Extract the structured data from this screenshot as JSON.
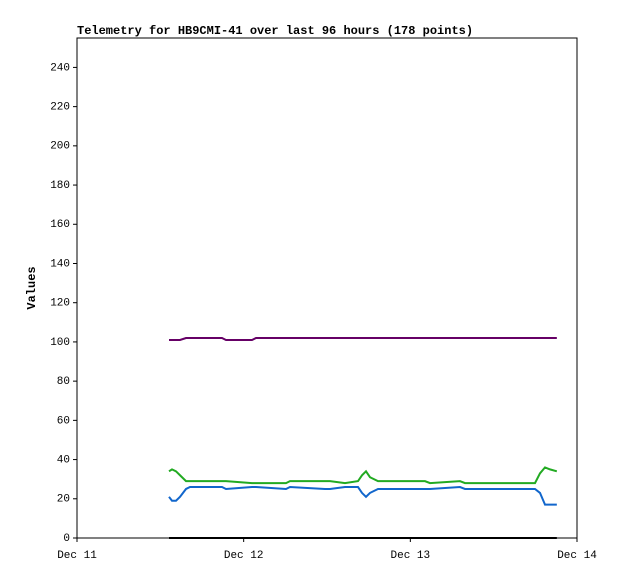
{
  "chart_data": {
    "type": "line",
    "title": "Telemetry for HB9CMI-41 over last 96 hours (178 points)",
    "y_label": "Values",
    "x": [
      0.552,
      0.57,
      0.594,
      0.618,
      0.654,
      0.678,
      0.87,
      0.894,
      1.05,
      1.074,
      1.254,
      1.278,
      1.488,
      1.518,
      1.608,
      1.686,
      1.71,
      1.734,
      1.758,
      1.806,
      2.088,
      2.118,
      2.298,
      2.328,
      2.748,
      2.778,
      2.808,
      2.838,
      2.879
    ],
    "series": [
      {
        "color": "#660066",
        "values": [
          101,
          101,
          101,
          101,
          102,
          102,
          102,
          101,
          101,
          102,
          102,
          102,
          102,
          102,
          102,
          102,
          102,
          102,
          102,
          102,
          102,
          102,
          102,
          102,
          102,
          102,
          102,
          102,
          102
        ]
      },
      {
        "color": "#22aa22",
        "values": [
          34,
          35,
          34,
          32,
          29,
          29,
          29,
          29,
          28,
          28,
          28,
          29,
          29,
          29,
          28,
          29,
          32,
          34,
          31,
          29,
          29,
          28,
          29,
          28,
          28,
          33,
          36,
          35,
          34
        ]
      },
      {
        "color": "#1166cc",
        "values": [
          21,
          19,
          19,
          21,
          25,
          26,
          26,
          25,
          26,
          26,
          25,
          26,
          25,
          25,
          26,
          26,
          23,
          21,
          23,
          25,
          25,
          25,
          26,
          25,
          25,
          23,
          17,
          17,
          17
        ]
      },
      {
        "color": "#000000",
        "values": [
          0,
          0,
          0,
          0,
          0,
          0,
          0,
          0,
          0,
          0,
          0,
          0,
          0,
          0,
          0,
          0,
          0,
          0,
          0,
          0,
          0,
          0,
          0,
          0,
          0,
          0,
          0,
          0,
          0
        ]
      }
    ],
    "xlim": [
      0,
      3
    ],
    "xticks": [
      {
        "value": 0,
        "label": "Dec 11"
      },
      {
        "value": 1,
        "label": "Dec 12"
      },
      {
        "value": 2,
        "label": "Dec 13"
      },
      {
        "value": 3,
        "label": "Dec 14"
      }
    ],
    "ylim": [
      0,
      255
    ],
    "yticks": [
      0,
      20,
      40,
      60,
      80,
      100,
      120,
      140,
      160,
      180,
      200,
      220,
      240
    ]
  }
}
